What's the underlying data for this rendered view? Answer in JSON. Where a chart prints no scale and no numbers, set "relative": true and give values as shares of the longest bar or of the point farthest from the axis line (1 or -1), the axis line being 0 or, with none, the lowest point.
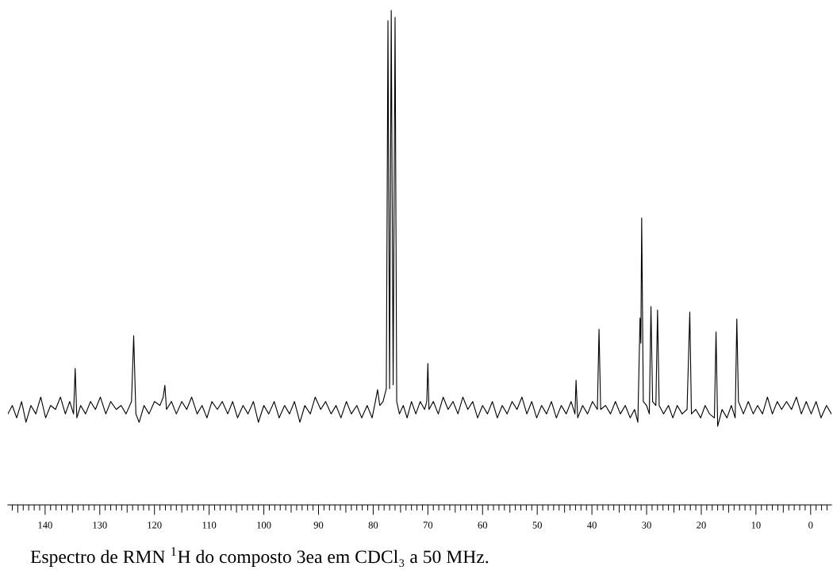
{
  "chart_data": {
    "type": "line",
    "relative": true,
    "annotations": [
      "Espectro de RMN $^{1}$H do composto 3ea em CDCl₃ a 50 MHz."
    ],
    "xlim": [
      146.8,
      -3.8
    ],
    "xticks": [
      {
        "value": 146,
        "label": null
      },
      {
        "value": 145,
        "label": null
      },
      {
        "value": 144,
        "label": null
      },
      {
        "value": 143,
        "label": null
      },
      {
        "value": 142,
        "label": null
      },
      {
        "value": 141,
        "label": null
      },
      140,
      {
        "value": 139,
        "label": null
      },
      {
        "value": 138,
        "label": null
      },
      {
        "value": 137,
        "label": null
      },
      {
        "value": 136,
        "label": null
      },
      {
        "value": 135,
        "label": null
      },
      {
        "value": 134,
        "label": null
      },
      {
        "value": 133,
        "label": null
      },
      {
        "value": 132,
        "label": null
      },
      {
        "value": 131,
        "label": null
      },
      130,
      {
        "value": 129,
        "label": null
      },
      {
        "value": 128,
        "label": null
      },
      {
        "value": 127,
        "label": null
      },
      {
        "value": 126,
        "label": null
      },
      {
        "value": 125,
        "label": null
      },
      {
        "value": 124,
        "label": null
      },
      {
        "value": 123,
        "label": null
      },
      {
        "value": 122,
        "label": null
      },
      {
        "value": 121,
        "label": null
      },
      120,
      {
        "value": 119,
        "label": null
      },
      {
        "value": 118,
        "label": null
      },
      {
        "value": 117,
        "label": null
      },
      {
        "value": 116,
        "label": null
      },
      {
        "value": 115,
        "label": null
      },
      {
        "value": 114,
        "label": null
      },
      {
        "value": 113,
        "label": null
      },
      {
        "value": 112,
        "label": null
      },
      {
        "value": 111,
        "label": null
      },
      110,
      {
        "value": 109,
        "label": null
      },
      {
        "value": 108,
        "label": null
      },
      {
        "value": 107,
        "label": null
      },
      {
        "value": 106,
        "label": null
      },
      {
        "value": 105,
        "label": null
      },
      {
        "value": 104,
        "label": null
      },
      {
        "value": 103,
        "label": null
      },
      {
        "value": 102,
        "label": null
      },
      {
        "value": 101,
        "label": null
      },
      100,
      {
        "value": 99,
        "label": null
      },
      {
        "value": 98,
        "label": null
      },
      {
        "value": 97,
        "label": null
      },
      {
        "value": 96,
        "label": null
      },
      {
        "value": 95,
        "label": null
      },
      {
        "value": 94,
        "label": null
      },
      {
        "value": 93,
        "label": null
      },
      {
        "value": 92,
        "label": null
      },
      {
        "value": 91,
        "label": null
      },
      90,
      {
        "value": 89,
        "label": null
      },
      {
        "value": 88,
        "label": null
      },
      {
        "value": 87,
        "label": null
      },
      {
        "value": 86,
        "label": null
      },
      {
        "value": 85,
        "label": null
      },
      {
        "value": 84,
        "label": null
      },
      {
        "value": 83,
        "label": null
      },
      {
        "value": 82,
        "label": null
      },
      {
        "value": 81,
        "label": null
      },
      80,
      {
        "value": 79,
        "label": null
      },
      {
        "value": 78,
        "label": null
      },
      {
        "value": 77,
        "label": null
      },
      {
        "value": 76,
        "label": null
      },
      {
        "value": 75,
        "label": null
      },
      {
        "value": 74,
        "label": null
      },
      {
        "value": 73,
        "label": null
      },
      {
        "value": 72,
        "label": null
      },
      {
        "value": 71,
        "label": null
      },
      70,
      {
        "value": 69,
        "label": null
      },
      {
        "value": 68,
        "label": null
      },
      {
        "value": 67,
        "label": null
      },
      {
        "value": 66,
        "label": null
      },
      {
        "value": 65,
        "label": null
      },
      {
        "value": 64,
        "label": null
      },
      {
        "value": 63,
        "label": null
      },
      {
        "value": 62,
        "label": null
      },
      {
        "value": 61,
        "label": null
      },
      60,
      {
        "value": 59,
        "label": null
      },
      {
        "value": 58,
        "label": null
      },
      {
        "value": 57,
        "label": null
      },
      {
        "value": 56,
        "label": null
      },
      {
        "value": 55,
        "label": null
      },
      {
        "value": 54,
        "label": null
      },
      {
        "value": 53,
        "label": null
      },
      {
        "value": 52,
        "label": null
      },
      {
        "value": 51,
        "label": null
      },
      50,
      {
        "value": 49,
        "label": null
      },
      {
        "value": 48,
        "label": null
      },
      {
        "value": 47,
        "label": null
      },
      {
        "value": 46,
        "label": null
      },
      {
        "value": 45,
        "label": null
      },
      {
        "value": 44,
        "label": null
      },
      {
        "value": 43,
        "label": null
      },
      {
        "value": 42,
        "label": null
      },
      {
        "value": 41,
        "label": null
      },
      40,
      {
        "value": 39,
        "label": null
      },
      {
        "value": 38,
        "label": null
      },
      {
        "value": 37,
        "label": null
      },
      {
        "value": 36,
        "label": null
      },
      {
        "value": 35,
        "label": null
      },
      {
        "value": 34,
        "label": null
      },
      {
        "value": 33,
        "label": null
      },
      {
        "value": 32,
        "label": null
      },
      {
        "value": 31,
        "label": null
      },
      30,
      {
        "value": 29,
        "label": null
      },
      {
        "value": 28,
        "label": null
      },
      {
        "value": 27,
        "label": null
      },
      {
        "value": 26,
        "label": null
      },
      {
        "value": 25,
        "label": null
      },
      {
        "value": 24,
        "label": null
      },
      {
        "value": 23,
        "label": null
      },
      {
        "value": 22,
        "label": null
      },
      {
        "value": 21,
        "label": null
      },
      20,
      {
        "value": 19,
        "label": null
      },
      {
        "value": 18,
        "label": null
      },
      {
        "value": 17,
        "label": null
      },
      {
        "value": 16,
        "label": null
      },
      {
        "value": 15,
        "label": null
      },
      {
        "value": 14,
        "label": null
      },
      {
        "value": 13,
        "label": null
      },
      {
        "value": 12,
        "label": null
      },
      {
        "value": 11,
        "label": null
      },
      10,
      {
        "value": 9,
        "label": null
      },
      {
        "value": 8,
        "label": null
      },
      {
        "value": 7,
        "label": null
      },
      {
        "value": 6,
        "label": null
      },
      {
        "value": 5,
        "label": null
      },
      {
        "value": 4,
        "label": null
      },
      {
        "value": 3,
        "label": null
      },
      {
        "value": 2,
        "label": null
      },
      {
        "value": 1,
        "label": null
      },
      0,
      {
        "value": -1,
        "label": null
      },
      {
        "value": -2,
        "label": null
      },
      {
        "value": -3,
        "label": null
      }
    ],
    "series": [
      {
        "color": "#000000",
        "x": [
          146.8,
          146.0,
          145.2,
          144.3,
          143.5,
          142.6,
          141.7,
          140.8,
          139.9,
          139.0,
          138.1,
          137.2,
          136.3,
          135.5,
          134.8,
          134.5,
          134.2,
          133.5,
          132.6,
          131.7,
          130.8,
          129.9,
          128.9,
          128.0,
          127.0,
          126.1,
          125.2,
          124.2,
          123.8,
          123.4,
          122.8,
          121.9,
          121.0,
          120.0,
          119.0,
          118.4,
          118.1,
          117.8,
          116.9,
          116.0,
          115.0,
          114.1,
          113.2,
          112.2,
          111.3,
          110.4,
          109.5,
          108.5,
          107.6,
          106.6,
          105.7,
          104.8,
          103.8,
          102.9,
          101.9,
          101.0,
          100.0,
          99.1,
          98.1,
          97.2,
          96.2,
          95.3,
          94.4,
          93.4,
          92.5,
          91.5,
          90.6,
          89.6,
          88.7,
          87.7,
          86.8,
          85.9,
          84.9,
          84.0,
          83.0,
          82.1,
          81.1,
          80.2,
          79.6,
          79.2,
          78.8,
          78.2,
          77.6,
          77.3,
          77.0,
          76.7,
          76.35,
          76.0,
          75.7,
          75.2,
          74.5,
          73.8,
          73.0,
          72.2,
          71.4,
          70.6,
          70.2,
          70.0,
          69.8,
          69.0,
          68.1,
          67.2,
          66.3,
          65.4,
          64.5,
          63.6,
          62.7,
          61.8,
          60.9,
          60.0,
          59.1,
          58.2,
          57.3,
          56.4,
          55.5,
          54.6,
          53.7,
          52.8,
          51.9,
          51.0,
          50.1,
          49.2,
          48.3,
          47.4,
          46.5,
          45.6,
          44.7,
          43.8,
          43.1,
          42.9,
          42.6,
          41.7,
          40.8,
          39.9,
          39.0,
          38.7,
          38.4,
          37.5,
          36.6,
          35.7,
          34.8,
          33.9,
          33.0,
          32.2,
          31.6,
          31.2,
          31.05,
          30.9,
          30.6,
          30.0,
          29.5,
          29.2,
          28.9,
          28.3,
          28.0,
          27.7,
          26.9,
          26.0,
          25.2,
          24.4,
          23.5,
          22.6,
          22.1,
          21.8,
          21.0,
          20.1,
          19.3,
          18.5,
          17.6,
          17.3,
          17.0,
          16.2,
          15.3,
          14.5,
          13.8,
          13.5,
          13.2,
          12.3,
          11.4,
          10.5,
          9.7,
          8.8,
          7.9,
          7.0,
          6.1,
          5.3,
          4.4,
          3.5,
          2.6,
          1.7,
          0.8,
          -0.1,
          -1.0,
          -1.9,
          -2.9,
          -3.8
        ],
        "values": [
          0.184,
          0.201,
          0.176,
          0.209,
          0.167,
          0.201,
          0.184,
          0.218,
          0.176,
          0.201,
          0.193,
          0.218,
          0.184,
          0.209,
          0.184,
          0.276,
          0.176,
          0.201,
          0.184,
          0.209,
          0.193,
          0.218,
          0.184,
          0.209,
          0.193,
          0.201,
          0.184,
          0.209,
          0.342,
          0.184,
          0.167,
          0.201,
          0.184,
          0.209,
          0.201,
          0.218,
          0.242,
          0.193,
          0.209,
          0.184,
          0.209,
          0.193,
          0.218,
          0.184,
          0.201,
          0.176,
          0.209,
          0.193,
          0.209,
          0.184,
          0.209,
          0.176,
          0.201,
          0.184,
          0.209,
          0.167,
          0.201,
          0.184,
          0.209,
          0.176,
          0.201,
          0.184,
          0.209,
          0.167,
          0.201,
          0.184,
          0.218,
          0.193,
          0.209,
          0.184,
          0.201,
          0.176,
          0.209,
          0.184,
          0.201,
          0.176,
          0.201,
          0.176,
          0.209,
          0.233,
          0.201,
          0.209,
          0.235,
          0.979,
          0.235,
          1.0,
          0.243,
          0.986,
          0.209,
          0.184,
          0.201,
          0.176,
          0.209,
          0.184,
          0.209,
          0.193,
          0.209,
          0.286,
          0.193,
          0.209,
          0.184,
          0.218,
          0.193,
          0.209,
          0.184,
          0.218,
          0.193,
          0.209,
          0.176,
          0.201,
          0.184,
          0.209,
          0.176,
          0.201,
          0.184,
          0.209,
          0.193,
          0.218,
          0.184,
          0.209,
          0.176,
          0.201,
          0.184,
          0.209,
          0.176,
          0.201,
          0.184,
          0.209,
          0.184,
          0.252,
          0.176,
          0.201,
          0.184,
          0.209,
          0.193,
          0.355,
          0.193,
          0.201,
          0.184,
          0.209,
          0.184,
          0.201,
          0.176,
          0.193,
          0.167,
          0.378,
          0.327,
          0.58,
          0.209,
          0.201,
          0.184,
          0.401,
          0.209,
          0.201,
          0.394,
          0.201,
          0.184,
          0.201,
          0.176,
          0.201,
          0.184,
          0.193,
          0.39,
          0.184,
          0.193,
          0.176,
          0.201,
          0.184,
          0.176,
          0.35,
          0.159,
          0.193,
          0.176,
          0.201,
          0.176,
          0.376,
          0.209,
          0.184,
          0.209,
          0.184,
          0.201,
          0.184,
          0.218,
          0.184,
          0.209,
          0.193,
          0.209,
          0.193,
          0.218,
          0.184,
          0.209,
          0.184,
          0.209,
          0.176,
          0.201,
          0.184
        ]
      }
    ]
  }
}
